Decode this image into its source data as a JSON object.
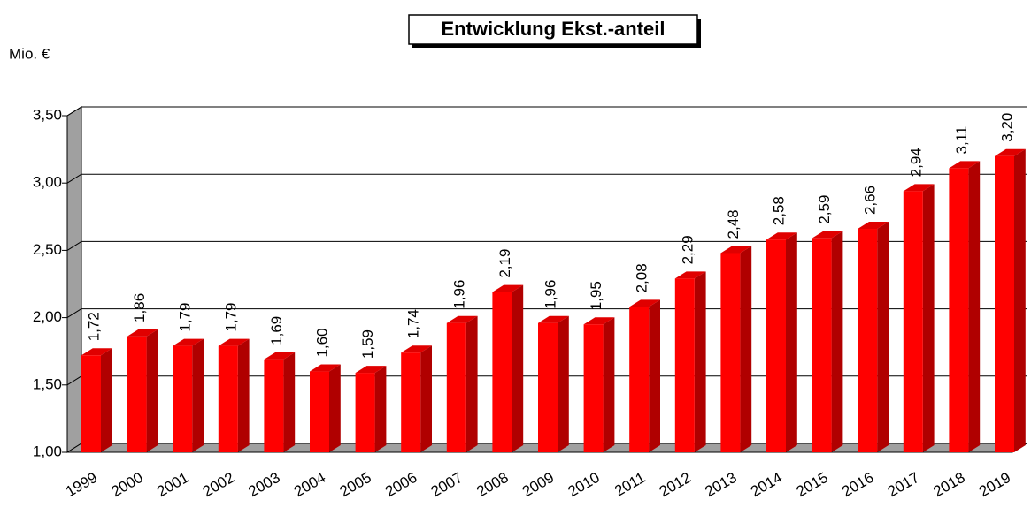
{
  "chart_data": {
    "type": "bar",
    "title": "Entwicklung Ekst.-anteil",
    "y_label": "Mio. €",
    "categories": [
      "1999",
      "2000",
      "2001",
      "2002",
      "2003",
      "2004",
      "2005",
      "2006",
      "2007",
      "2008",
      "2009",
      "2010",
      "2011",
      "2012",
      "2013",
      "2014",
      "2015",
      "2016",
      "2017",
      "2018",
      "2019"
    ],
    "values": [
      1.72,
      1.86,
      1.79,
      1.79,
      1.69,
      1.6,
      1.59,
      1.74,
      1.96,
      2.19,
      1.96,
      1.95,
      2.08,
      2.29,
      2.48,
      2.58,
      2.59,
      2.66,
      2.94,
      3.11,
      3.2
    ],
    "value_labels": [
      "1,72",
      "1,86",
      "1,79",
      "1,79",
      "1,69",
      "1,60",
      "1,59",
      "1,74",
      "1,96",
      "2,19",
      "1,96",
      "1,95",
      "2,08",
      "2,29",
      "2,48",
      "2,58",
      "2,59",
      "2,66",
      "2,94",
      "3,11",
      "3,20"
    ],
    "color": "#ff0000",
    "ylim": [
      1.0,
      3.5
    ],
    "yticks": [
      {
        "value": 1.0,
        "label": "1,00"
      },
      {
        "value": 1.5,
        "label": "1,50"
      },
      {
        "value": 2.0,
        "label": "2,00"
      },
      {
        "value": 2.5,
        "label": "2,50"
      },
      {
        "value": 3.0,
        "label": "3,00"
      },
      {
        "value": 3.5,
        "label": "3,50"
      }
    ],
    "grid": true
  }
}
